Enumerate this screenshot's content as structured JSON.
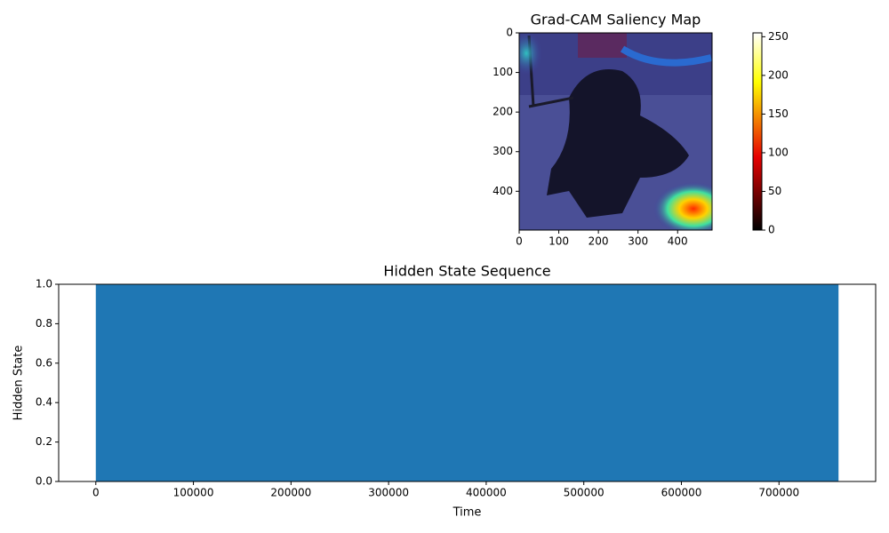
{
  "chart_data": [
    {
      "type": "image",
      "title": "Grad-CAM Saliency Map",
      "xlim": [
        0,
        487
      ],
      "ylim": [
        498,
        0
      ],
      "xticks": [
        0,
        100,
        200,
        300,
        400
      ],
      "yticks": [
        0,
        100,
        200,
        300,
        400
      ],
      "colorbar": {
        "colormap": "hot",
        "lim": [
          0,
          255
        ],
        "ticks": [
          0,
          50,
          100,
          150,
          200,
          250
        ]
      }
    },
    {
      "type": "area",
      "title": "Hidden State Sequence",
      "xlabel": "Time",
      "ylabel": "Hidden State",
      "x": [
        0,
        761000
      ],
      "values": [
        1,
        1
      ],
      "color": "#1f77b4",
      "xlim": [
        -38050,
        799050
      ],
      "ylim": [
        0,
        1
      ],
      "xticks": [
        0,
        100000,
        200000,
        300000,
        400000,
        500000,
        600000,
        700000
      ],
      "yticks": [
        {
          "value": 0,
          "label": "0.0"
        },
        {
          "value": 0.2,
          "label": "0.2"
        },
        {
          "value": 0.4,
          "label": "0.4"
        },
        {
          "value": 0.6,
          "label": "0.6"
        },
        {
          "value": 0.8,
          "label": "0.8"
        },
        {
          "value": 1,
          "label": "1.0"
        }
      ]
    }
  ]
}
